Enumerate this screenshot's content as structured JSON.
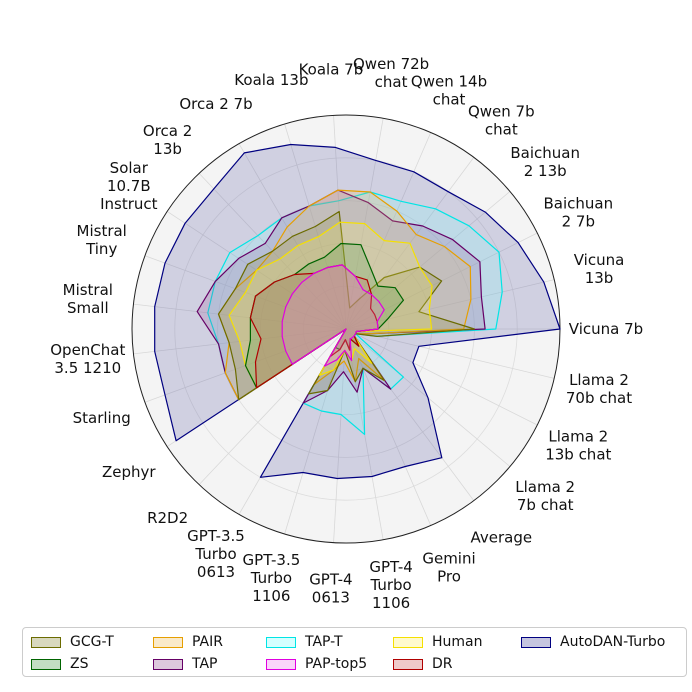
{
  "chart_data": {
    "type": "radar",
    "title": "",
    "range": [
      0,
      1
    ],
    "gridlines": true,
    "categories": [
      "Vicuna 7b",
      "Llama 2 70b chat",
      "Llama 2 13b chat",
      "Llama 2 7b chat",
      "Average",
      "Gemini Pro",
      "GPT-4 Turbo 1106",
      "GPT-4 0613",
      "GPT-3.5 Turbo 1106",
      "GPT-3.5 Turbo 0613",
      "R2D2",
      "Zephyr",
      "Starling",
      "OpenChat 3.5 1210",
      "Mistral Small",
      "Mistral Tiny",
      "Solar 10.7B Instruct",
      "Orca 2 13b",
      "Orca 2 7b",
      "Koala 13b",
      "Koala 7b",
      "Qwen 72b chat",
      "Qwen 14b chat",
      "Qwen 7b chat",
      "Baichuan 2 13b",
      "Baichuan 2 7b",
      "Vicuna 13b"
    ],
    "series": [
      {
        "name": "GCG-T",
        "color": "#6b6b00",
        "fill": "#8a8a3c",
        "values": [
          0.6,
          0.15,
          0.05,
          0.05,
          0.3,
          0.2,
          0.25,
          0.1,
          0.3,
          0.35,
          0.0,
          0.6,
          0.55,
          0.55,
          0.6,
          0.55,
          0.55,
          0.5,
          0.5,
          0.5,
          0.55,
          0.1,
          0.15,
          0.3,
          0.45,
          0.5,
          0.35
        ]
      },
      {
        "name": "ZS",
        "color": "#006400",
        "fill": "#4a9a4a",
        "values": [
          0.15,
          0.05,
          0.05,
          0.05,
          0.1,
          0.05,
          0.1,
          0.05,
          0.1,
          0.1,
          0.0,
          0.5,
          0.5,
          0.45,
          0.45,
          0.45,
          0.4,
          0.35,
          0.35,
          0.35,
          0.4,
          0.4,
          0.3,
          0.25,
          0.3,
          0.3,
          0.2
        ]
      },
      {
        "name": "PAIR",
        "color": "#e69f00",
        "fill": "#f0c060",
        "values": [
          0.55,
          0.1,
          0.05,
          0.05,
          0.3,
          0.15,
          0.25,
          0.15,
          0.2,
          0.3,
          0.0,
          0.6,
          0.6,
          0.55,
          0.6,
          0.55,
          0.5,
          0.5,
          0.55,
          0.6,
          0.65,
          0.65,
          0.6,
          0.55,
          0.6,
          0.65,
          0.6
        ]
      },
      {
        "name": "TAP",
        "color": "#660066",
        "fill": "#9a5a9a",
        "values": [
          0.65,
          0.1,
          0.05,
          0.05,
          0.35,
          0.2,
          0.3,
          0.2,
          0.3,
          0.4,
          0.0,
          0.6,
          0.6,
          0.6,
          0.7,
          0.65,
          0.6,
          0.55,
          0.6,
          0.6,
          0.65,
          0.6,
          0.55,
          0.6,
          0.65,
          0.7,
          0.65
        ]
      },
      {
        "name": "TAP-T",
        "color": "#00e5e5",
        "fill": "#80ffff",
        "values": [
          0.7,
          0.15,
          0.05,
          0.35,
          0.35,
          0.2,
          0.5,
          0.4,
          0.4,
          0.4,
          0.0,
          0.6,
          0.6,
          0.6,
          0.65,
          0.65,
          0.65,
          0.6,
          0.6,
          0.6,
          0.6,
          0.65,
          0.65,
          0.7,
          0.75,
          0.8,
          0.75
        ]
      },
      {
        "name": "PAP-top5",
        "color": "#e000e0",
        "fill": "#f080f0",
        "values": [
          0.15,
          0.05,
          0.05,
          0.05,
          0.05,
          0.05,
          0.15,
          0.1,
          0.15,
          0.2,
          0.0,
          0.3,
          0.3,
          0.3,
          0.3,
          0.3,
          0.3,
          0.3,
          0.3,
          0.3,
          0.3,
          0.25,
          0.2,
          0.2,
          0.2,
          0.2,
          0.15
        ]
      },
      {
        "name": "Human",
        "color": "#f5e000",
        "fill": "#fff06a",
        "values": [
          0.4,
          0.05,
          0.05,
          0.05,
          0.2,
          0.1,
          0.15,
          0.1,
          0.2,
          0.25,
          0.0,
          0.5,
          0.5,
          0.5,
          0.55,
          0.5,
          0.5,
          0.45,
          0.45,
          0.45,
          0.5,
          0.5,
          0.45,
          0.5,
          0.45,
          0.45,
          0.4
        ]
      },
      {
        "name": "DR",
        "color": "#b00000",
        "fill": "#d06060",
        "values": [
          0.15,
          0.05,
          0.05,
          0.05,
          0.1,
          0.05,
          0.1,
          0.05,
          0.1,
          0.15,
          0.0,
          0.5,
          0.45,
          0.4,
          0.45,
          0.45,
          0.4,
          0.35,
          0.3,
          0.3,
          0.3,
          0.25,
          0.25,
          0.2,
          0.15,
          0.15,
          0.15
        ]
      },
      {
        "name": "AutoDAN-Turbo",
        "color": "#000080",
        "fill": "#5050a0",
        "values": [
          1.0,
          0.35,
          0.35,
          0.5,
          0.75,
          0.7,
          0.7,
          0.7,
          0.7,
          0.8,
          0.0,
          0.95,
          0.9,
          0.9,
          0.9,
          0.9,
          0.9,
          0.9,
          0.95,
          0.9,
          0.85,
          0.8,
          0.8,
          0.8,
          0.85,
          0.9,
          0.95
        ]
      }
    ],
    "legend": {
      "position": "bottom"
    }
  }
}
